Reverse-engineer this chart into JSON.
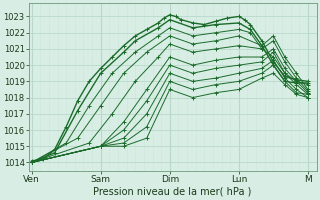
{
  "xlabel": "Pression niveau de la mer( hPa )",
  "bg_color": "#d8ede4",
  "grid_color_major": "#b8d8cc",
  "grid_color_minor": "#cce8dc",
  "line_color": "#1a6b2a",
  "ylim": [
    1013.5,
    1023.8
  ],
  "yticks": [
    1014,
    1015,
    1016,
    1017,
    1018,
    1019,
    1020,
    1021,
    1022,
    1023
  ],
  "day_labels": [
    "Ven",
    "Sam",
    "Dim",
    "Lun",
    "M"
  ],
  "day_positions": [
    0,
    24,
    48,
    72,
    96
  ],
  "xlim": [
    -1,
    99
  ],
  "series": [
    [
      [
        0,
        1014.1
      ],
      [
        4,
        1014.2
      ],
      [
        8,
        1014.8
      ],
      [
        12,
        1016.2
      ],
      [
        16,
        1017.8
      ],
      [
        20,
        1019.0
      ],
      [
        24,
        1019.8
      ],
      [
        28,
        1020.5
      ],
      [
        32,
        1021.2
      ],
      [
        36,
        1021.8
      ],
      [
        40,
        1022.2
      ],
      [
        44,
        1022.6
      ],
      [
        46,
        1022.9
      ],
      [
        48,
        1023.1
      ],
      [
        50,
        1023.0
      ],
      [
        52,
        1022.8
      ],
      [
        56,
        1022.6
      ],
      [
        60,
        1022.5
      ],
      [
        64,
        1022.7
      ],
      [
        68,
        1022.9
      ],
      [
        72,
        1023.0
      ],
      [
        74,
        1022.8
      ],
      [
        76,
        1022.5
      ],
      [
        80,
        1021.5
      ],
      [
        84,
        1020.2
      ],
      [
        88,
        1019.3
      ],
      [
        92,
        1019.1
      ],
      [
        96,
        1019.0
      ]
    ],
    [
      [
        0,
        1014.0
      ],
      [
        8,
        1014.6
      ],
      [
        16,
        1017.2
      ],
      [
        24,
        1019.5
      ],
      [
        32,
        1020.8
      ],
      [
        36,
        1021.5
      ],
      [
        44,
        1022.3
      ],
      [
        48,
        1022.8
      ],
      [
        56,
        1022.3
      ],
      [
        64,
        1022.5
      ],
      [
        72,
        1022.6
      ],
      [
        76,
        1022.2
      ],
      [
        80,
        1021.2
      ],
      [
        84,
        1020.0
      ],
      [
        88,
        1019.0
      ],
      [
        92,
        1018.9
      ],
      [
        96,
        1018.9
      ]
    ],
    [
      [
        0,
        1014.0
      ],
      [
        12,
        1015.2
      ],
      [
        20,
        1017.5
      ],
      [
        28,
        1019.5
      ],
      [
        36,
        1020.8
      ],
      [
        44,
        1021.8
      ],
      [
        48,
        1022.3
      ],
      [
        56,
        1021.8
      ],
      [
        64,
        1022.0
      ],
      [
        72,
        1022.2
      ],
      [
        76,
        1022.0
      ],
      [
        80,
        1021.0
      ],
      [
        84,
        1020.5
      ],
      [
        88,
        1019.5
      ],
      [
        92,
        1019.0
      ],
      [
        96,
        1018.8
      ]
    ],
    [
      [
        0,
        1014.0
      ],
      [
        16,
        1015.5
      ],
      [
        24,
        1017.5
      ],
      [
        32,
        1019.5
      ],
      [
        40,
        1020.8
      ],
      [
        48,
        1021.8
      ],
      [
        56,
        1021.3
      ],
      [
        64,
        1021.5
      ],
      [
        72,
        1021.8
      ],
      [
        80,
        1021.2
      ],
      [
        84,
        1021.8
      ],
      [
        88,
        1020.5
      ],
      [
        92,
        1019.5
      ],
      [
        96,
        1018.5
      ]
    ],
    [
      [
        0,
        1014.0
      ],
      [
        20,
        1015.2
      ],
      [
        28,
        1017.0
      ],
      [
        36,
        1019.0
      ],
      [
        44,
        1020.5
      ],
      [
        48,
        1021.3
      ],
      [
        56,
        1020.8
      ],
      [
        64,
        1021.0
      ],
      [
        72,
        1021.2
      ],
      [
        80,
        1021.0
      ],
      [
        84,
        1021.5
      ],
      [
        88,
        1020.2
      ],
      [
        92,
        1019.2
      ],
      [
        96,
        1018.4
      ]
    ],
    [
      [
        0,
        1014.0
      ],
      [
        24,
        1015.0
      ],
      [
        32,
        1016.5
      ],
      [
        40,
        1018.5
      ],
      [
        48,
        1020.5
      ],
      [
        56,
        1020.0
      ],
      [
        64,
        1020.3
      ],
      [
        72,
        1020.5
      ],
      [
        80,
        1020.5
      ],
      [
        84,
        1021.0
      ],
      [
        88,
        1019.8
      ],
      [
        92,
        1019.0
      ],
      [
        96,
        1018.3
      ]
    ],
    [
      [
        0,
        1014.0
      ],
      [
        24,
        1015.0
      ],
      [
        32,
        1016.0
      ],
      [
        40,
        1017.8
      ],
      [
        48,
        1020.0
      ],
      [
        56,
        1019.5
      ],
      [
        64,
        1019.8
      ],
      [
        72,
        1020.0
      ],
      [
        80,
        1020.2
      ],
      [
        84,
        1020.8
      ],
      [
        88,
        1019.5
      ],
      [
        92,
        1018.8
      ],
      [
        96,
        1018.2
      ]
    ],
    [
      [
        0,
        1014.0
      ],
      [
        24,
        1015.0
      ],
      [
        32,
        1015.5
      ],
      [
        40,
        1017.0
      ],
      [
        48,
        1019.5
      ],
      [
        56,
        1019.0
      ],
      [
        64,
        1019.2
      ],
      [
        72,
        1019.5
      ],
      [
        80,
        1019.8
      ],
      [
        84,
        1020.3
      ],
      [
        88,
        1019.2
      ],
      [
        92,
        1018.5
      ],
      [
        96,
        1018.0
      ]
    ],
    [
      [
        0,
        1014.0
      ],
      [
        24,
        1015.0
      ],
      [
        32,
        1015.2
      ],
      [
        40,
        1016.2
      ],
      [
        48,
        1019.0
      ],
      [
        56,
        1018.5
      ],
      [
        64,
        1018.8
      ],
      [
        72,
        1019.0
      ],
      [
        80,
        1019.5
      ],
      [
        84,
        1020.0
      ],
      [
        88,
        1019.0
      ],
      [
        92,
        1018.3
      ],
      [
        96,
        1018.2
      ]
    ],
    [
      [
        0,
        1014.0
      ],
      [
        24,
        1015.0
      ],
      [
        32,
        1015.0
      ],
      [
        40,
        1015.5
      ],
      [
        48,
        1018.5
      ],
      [
        56,
        1018.0
      ],
      [
        64,
        1018.3
      ],
      [
        72,
        1018.5
      ],
      [
        80,
        1019.2
      ],
      [
        84,
        1019.5
      ],
      [
        88,
        1018.8
      ],
      [
        92,
        1018.2
      ],
      [
        96,
        1018.0
      ]
    ]
  ]
}
